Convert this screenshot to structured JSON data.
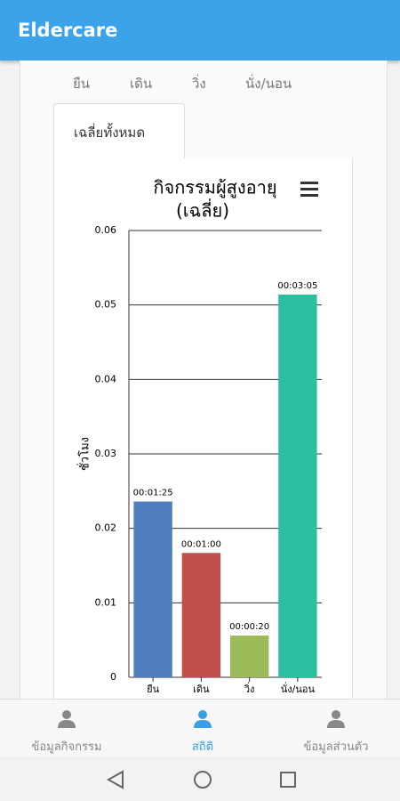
{
  "app_bar": {
    "title": "Eldercare"
  },
  "tabs": {
    "items": [
      "ยืน",
      "เดิน",
      "วิ่ง",
      "นั่ง/นอน",
      "เฉลี่ยทั้งหมด"
    ],
    "active": 4
  },
  "chart_data": {
    "type": "bar",
    "title": [
      "กิจกรรมผู้สูงอายุ",
      "(เฉลี่ย)"
    ],
    "y_label": "ชั่วโมง",
    "categories": [
      "ยืน",
      "เดิน",
      "วิ่ง",
      "นั่ง/นอน"
    ],
    "values": [
      0.0236,
      0.0167,
      0.0056,
      0.0514
    ],
    "value_labels": [
      "00:01:25",
      "00:01:00",
      "00:00:20",
      "00:03:05"
    ],
    "colors": [
      "#4f7dbd",
      "#c24e4c",
      "#9bbb59",
      "#2bbf9f"
    ],
    "ylim": [
      0,
      0.06
    ],
    "yticks": [
      0,
      0.01,
      0.02,
      0.03,
      0.04,
      0.05,
      0.06
    ],
    "grid": true
  },
  "bottom_nav": [
    {
      "label": "ข้อมูลกิจกรรม",
      "active": false
    },
    {
      "label": "สถิติ",
      "active": true
    },
    {
      "label": "ข้อมูลส่วนตัว",
      "active": false
    }
  ]
}
